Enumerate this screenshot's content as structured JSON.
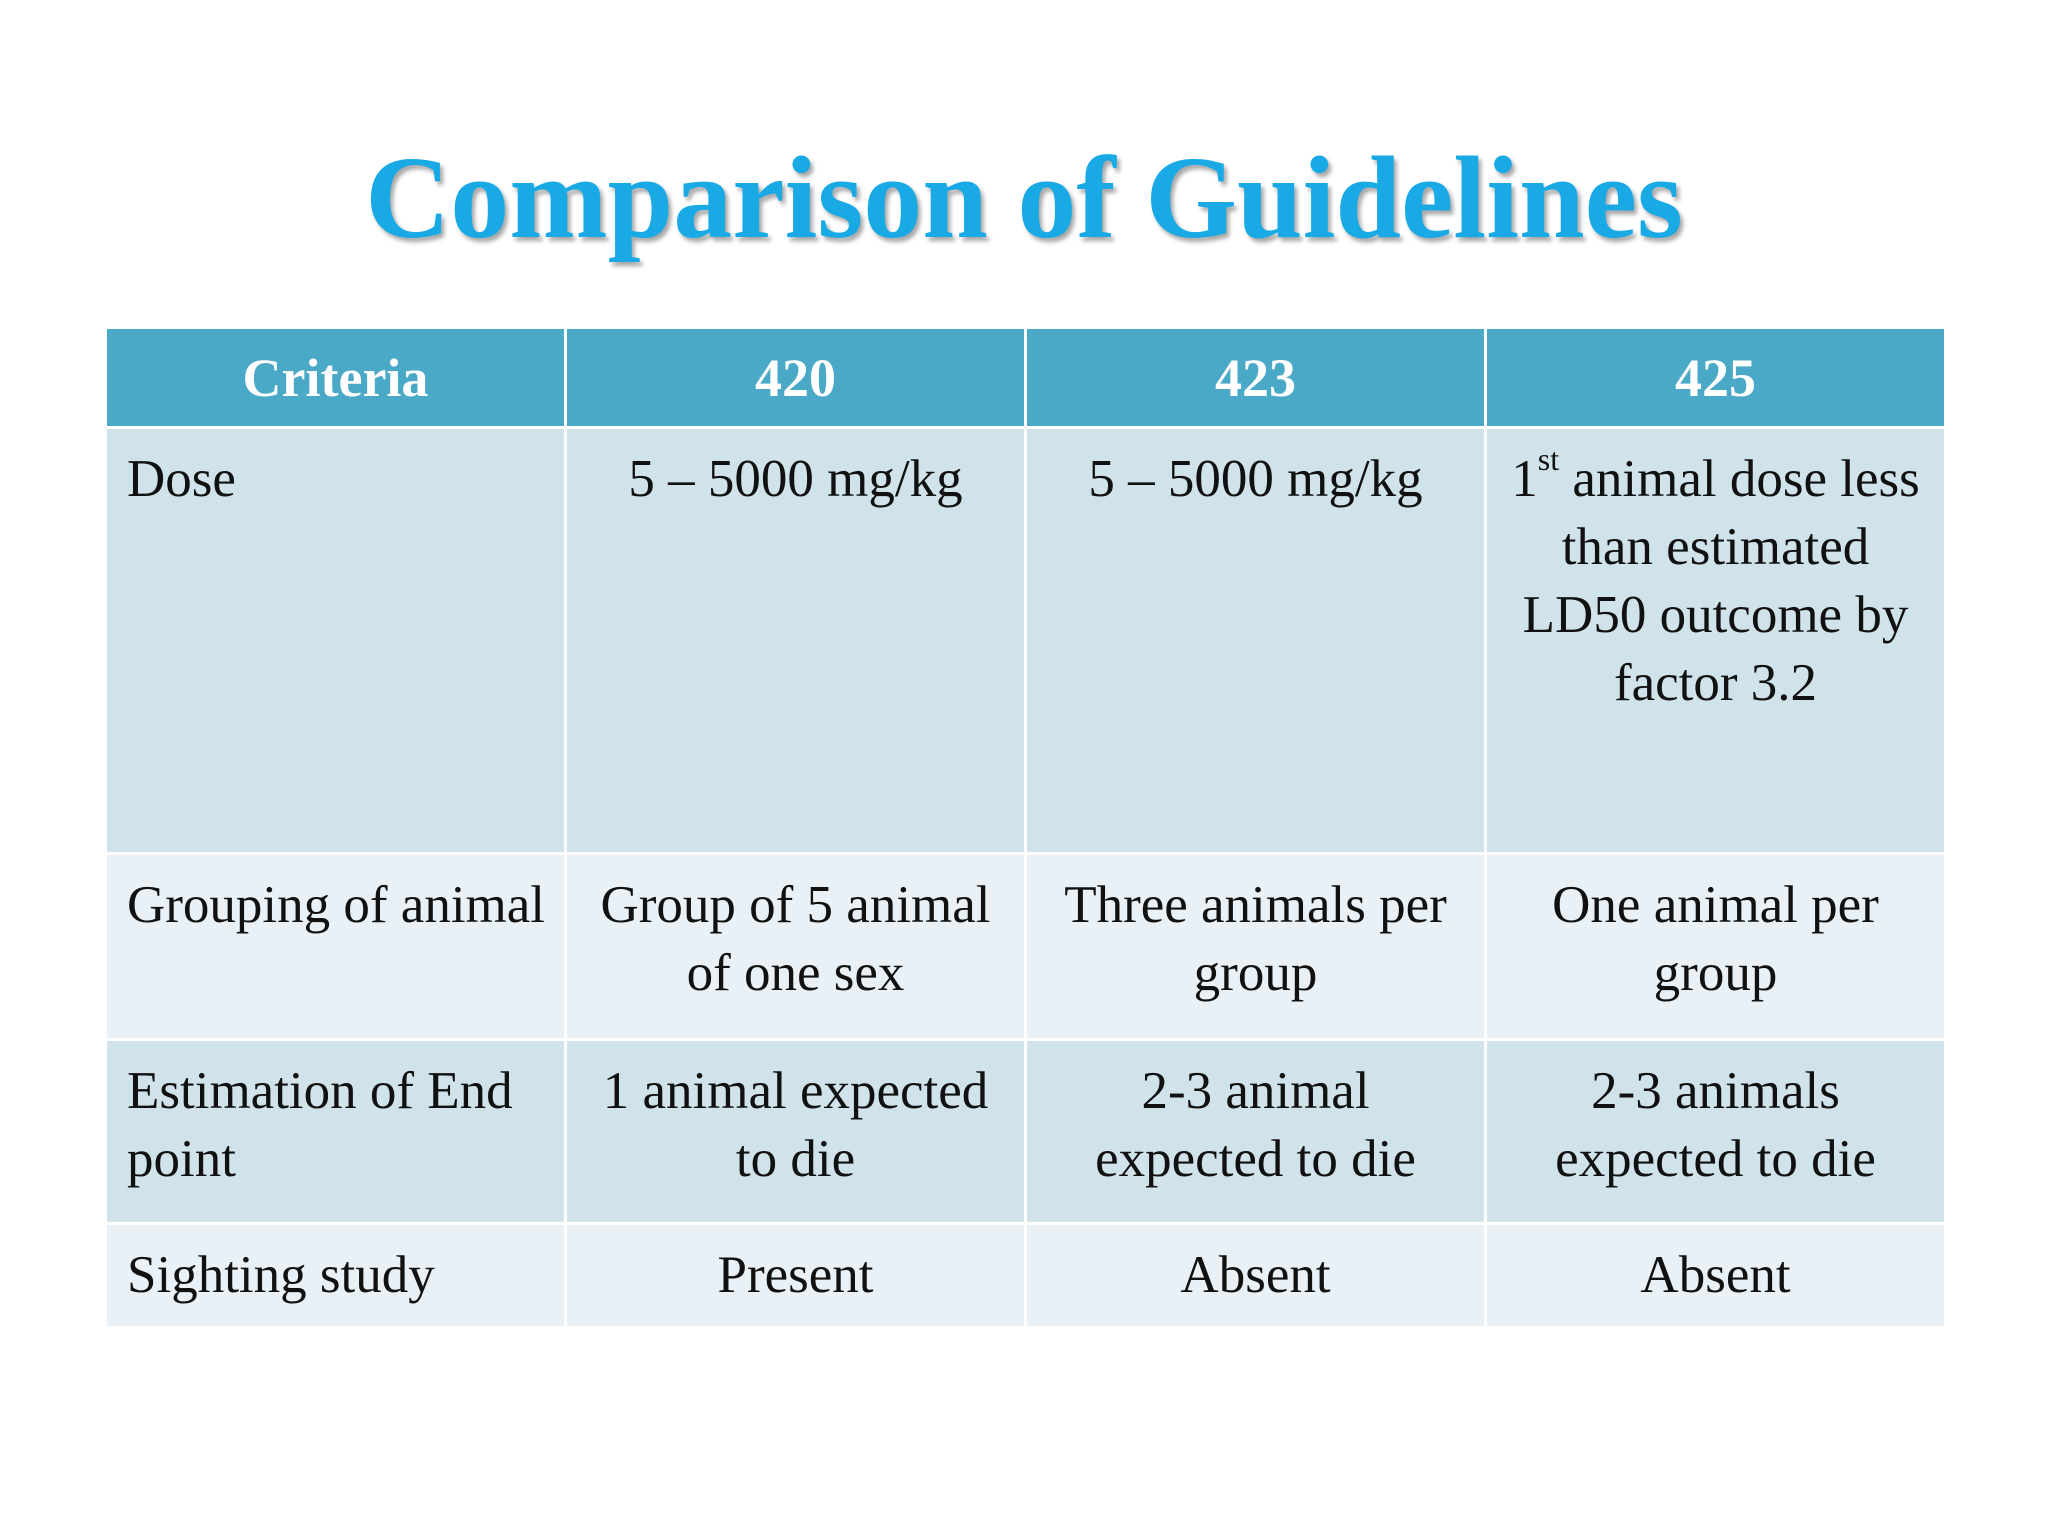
{
  "slide": {
    "title": "Comparison of Guidelines",
    "title_color": "#19aae6",
    "header_color": "#4aa9c6",
    "row_dark_color": "#d1e3ea",
    "row_light_color": "#e9f1f6"
  },
  "table": {
    "headers": [
      "Criteria",
      "420",
      "423",
      "425"
    ],
    "rows": [
      {
        "criteria": "Dose",
        "c420": "5 – 5000 mg/kg",
        "c423": "5 – 5000 mg/kg",
        "c425_ordinal": "1",
        "c425_ordinal_suffix": "st",
        "c425_rest": " animal dose less than estimated LD50 outcome by factor 3.2"
      },
      {
        "criteria": "Grouping of animal",
        "c420": "Group of 5 animal of one sex",
        "c423": "Three animals per group",
        "c425": "One animal per group"
      },
      {
        "criteria": "Estimation of End point",
        "c420": "1 animal expected to die",
        "c423": "2-3 animal expected to die",
        "c425": "2-3 animals expected to die"
      },
      {
        "criteria": "Sighting study",
        "c420": "Present",
        "c423": "Absent",
        "c425": "Absent"
      }
    ]
  }
}
